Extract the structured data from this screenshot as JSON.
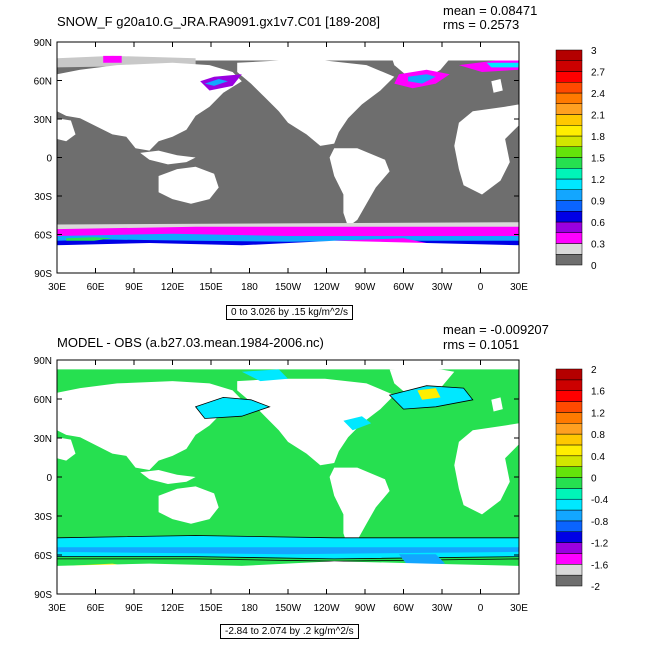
{
  "panels": [
    {
      "title": "SNOW_F g20a10.G_JRA.RA9091.gx1v7.C01 [189-208]",
      "mean": "mean = 0.08471",
      "rms": "rms = 0.2573",
      "range_note": "0 to 3.026 by .15 kg/m^2/s",
      "lat_labels": [
        "90N",
        "60N",
        "30N",
        "0",
        "30S",
        "60S",
        "90S"
      ],
      "lon_labels": [
        "30E",
        "60E",
        "90E",
        "120E",
        "150E",
        "180",
        "150W",
        "120W",
        "90W",
        "60W",
        "30W",
        "0",
        "30E"
      ],
      "colorbar": {
        "labels": [
          "0",
          "0.3",
          "0.6",
          "0.9",
          "1.2",
          "1.5",
          "1.8",
          "2.1",
          "2.4",
          "2.7",
          "3"
        ],
        "colors": [
          "#6e6e6e",
          "#d9d9d9",
          "#ff00ff",
          "#9a00e0",
          "#0000e6",
          "#0a64ff",
          "#13a6ff",
          "#00e8ff",
          "#00f5b8",
          "#26e050",
          "#64e40a",
          "#d2e600",
          "#ffee00",
          "#ffc800",
          "#ffa020",
          "#ff7a00",
          "#ff4a00",
          "#ff0000",
          "#cc0000",
          "#b40000"
        ]
      }
    },
    {
      "title": "MODEL - OBS (a.b27.03.mean.1984-2006.nc)",
      "mean": "mean = -0.009207",
      "rms": "rms = 0.1051",
      "range_note": "-2.84 to 2.074 by .2 kg/m^2/s",
      "lat_labels": [
        "90N",
        "60N",
        "30N",
        "0",
        "30S",
        "60S",
        "90S"
      ],
      "lon_labels": [
        "30E",
        "60E",
        "90E",
        "120E",
        "150E",
        "180",
        "150W",
        "120W",
        "90W",
        "60W",
        "30W",
        "0",
        "30E"
      ],
      "colorbar": {
        "labels": [
          "-2",
          "-1.6",
          "-1.2",
          "-0.8",
          "-0.4",
          "0",
          "0.4",
          "0.8",
          "1.2",
          "1.6",
          "2"
        ],
        "colors": [
          "#6e6e6e",
          "#d9d9d9",
          "#ff00ff",
          "#9a00e0",
          "#0000e6",
          "#0a64ff",
          "#13a6ff",
          "#00e8ff",
          "#00f5b8",
          "#26e050",
          "#64e40a",
          "#d2e600",
          "#ffee00",
          "#ffc800",
          "#ffa020",
          "#ff7a00",
          "#ff4a00",
          "#ff0000",
          "#cc0000",
          "#b40000"
        ]
      }
    }
  ]
}
